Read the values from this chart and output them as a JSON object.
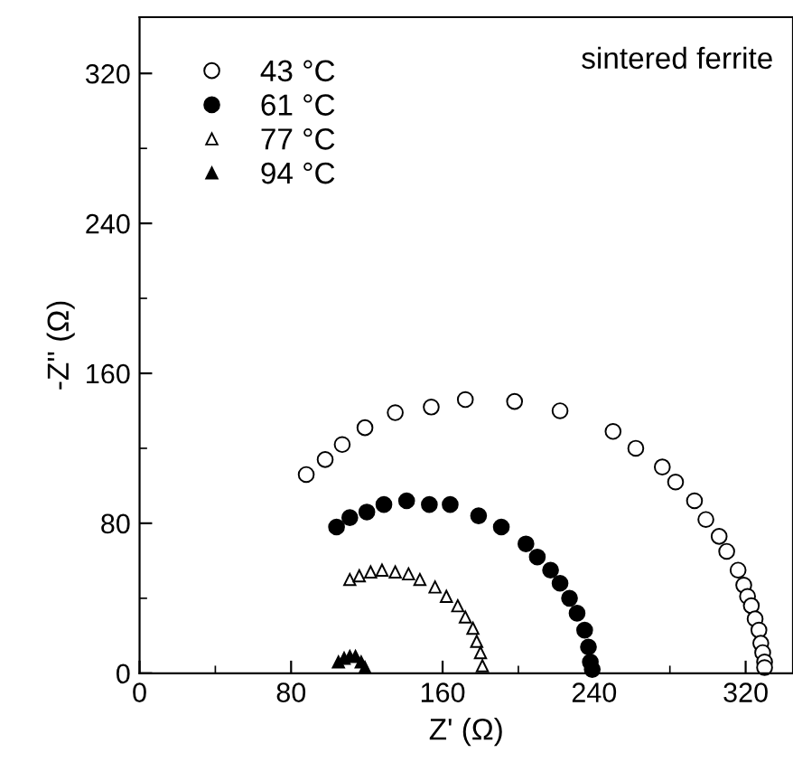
{
  "chart_data": {
    "type": "scatter",
    "xlabel": "Z' (Ω)",
    "ylabel": "-Z'' (Ω)",
    "annotations": [
      "sintered ferrite"
    ],
    "xlim": [
      0,
      345
    ],
    "ylim": [
      0,
      350
    ],
    "xticks": [
      0,
      80,
      160,
      240,
      320
    ],
    "yticks": [
      0,
      80,
      160,
      240,
      320
    ],
    "grid": false,
    "legend": "top left",
    "series": [
      {
        "name": "43 °C",
        "color": "#ffffff",
        "marker": "circle",
        "x": [
          88,
          98,
          107,
          119,
          135,
          154,
          172,
          198,
          222,
          250,
          262,
          276,
          283,
          293,
          299,
          306,
          310,
          316,
          319,
          321,
          323,
          325,
          327,
          328,
          329,
          330,
          330
        ],
        "values": [
          106,
          114,
          122,
          131,
          139,
          142,
          146,
          145,
          140,
          129,
          120,
          110,
          102,
          92,
          82,
          73,
          65,
          55,
          47,
          41,
          36,
          29,
          23,
          16,
          11,
          6,
          3
        ]
      },
      {
        "name": "61 °C",
        "color": "#000000",
        "marker": "circle",
        "x": [
          104,
          111,
          120,
          129,
          141,
          153,
          164,
          179,
          191,
          204,
          210,
          217,
          222,
          227,
          231,
          235,
          237,
          238,
          239
        ],
        "values": [
          78,
          83,
          86,
          90,
          92,
          90,
          90,
          84,
          78,
          69,
          62,
          55,
          48,
          40,
          32,
          23,
          14,
          6,
          2
        ]
      },
      {
        "name": "77 °C",
        "color": "#ffffff",
        "marker": "triangle",
        "x": [
          111,
          116,
          122,
          128,
          135,
          142,
          148,
          156,
          162,
          168,
          172,
          176,
          178,
          180,
          181
        ],
        "values": [
          50,
          52,
          54,
          55,
          54,
          53,
          50,
          46,
          41,
          36,
          30,
          24,
          17,
          11,
          4
        ]
      },
      {
        "name": "94 °C",
        "color": "#000000",
        "marker": "triangle",
        "x": [
          105,
          108,
          111,
          114,
          117,
          119
        ],
        "values": [
          6,
          8,
          9,
          9,
          6,
          3
        ]
      }
    ]
  }
}
